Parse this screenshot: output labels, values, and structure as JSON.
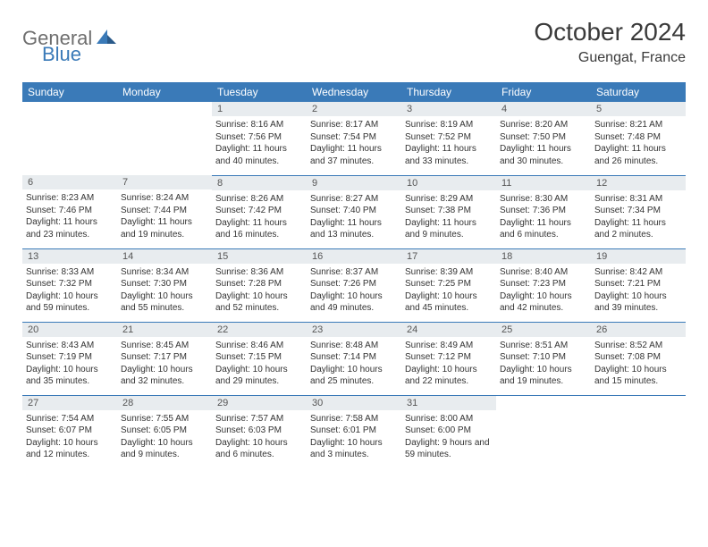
{
  "logo": {
    "part1": "General",
    "part2": "Blue"
  },
  "title": "October 2024",
  "location": "Guengat, France",
  "colors": {
    "header_bg": "#3a7ab8",
    "header_text": "#ffffff",
    "daynum_bg": "#e8ecef",
    "daynum_text": "#555555",
    "body_text": "#333333",
    "border": "#3a7ab8",
    "logo_gray": "#6e6e6e",
    "logo_blue": "#3a7ab8"
  },
  "day_labels": [
    "Sunday",
    "Monday",
    "Tuesday",
    "Wednesday",
    "Thursday",
    "Friday",
    "Saturday"
  ],
  "weeks": [
    [
      null,
      null,
      {
        "num": "1",
        "sunrise": "8:16 AM",
        "sunset": "7:56 PM",
        "daylight": "11 hours and 40 minutes."
      },
      {
        "num": "2",
        "sunrise": "8:17 AM",
        "sunset": "7:54 PM",
        "daylight": "11 hours and 37 minutes."
      },
      {
        "num": "3",
        "sunrise": "8:19 AM",
        "sunset": "7:52 PM",
        "daylight": "11 hours and 33 minutes."
      },
      {
        "num": "4",
        "sunrise": "8:20 AM",
        "sunset": "7:50 PM",
        "daylight": "11 hours and 30 minutes."
      },
      {
        "num": "5",
        "sunrise": "8:21 AM",
        "sunset": "7:48 PM",
        "daylight": "11 hours and 26 minutes."
      }
    ],
    [
      {
        "num": "6",
        "sunrise": "8:23 AM",
        "sunset": "7:46 PM",
        "daylight": "11 hours and 23 minutes."
      },
      {
        "num": "7",
        "sunrise": "8:24 AM",
        "sunset": "7:44 PM",
        "daylight": "11 hours and 19 minutes."
      },
      {
        "num": "8",
        "sunrise": "8:26 AM",
        "sunset": "7:42 PM",
        "daylight": "11 hours and 16 minutes."
      },
      {
        "num": "9",
        "sunrise": "8:27 AM",
        "sunset": "7:40 PM",
        "daylight": "11 hours and 13 minutes."
      },
      {
        "num": "10",
        "sunrise": "8:29 AM",
        "sunset": "7:38 PM",
        "daylight": "11 hours and 9 minutes."
      },
      {
        "num": "11",
        "sunrise": "8:30 AM",
        "sunset": "7:36 PM",
        "daylight": "11 hours and 6 minutes."
      },
      {
        "num": "12",
        "sunrise": "8:31 AM",
        "sunset": "7:34 PM",
        "daylight": "11 hours and 2 minutes."
      }
    ],
    [
      {
        "num": "13",
        "sunrise": "8:33 AM",
        "sunset": "7:32 PM",
        "daylight": "10 hours and 59 minutes."
      },
      {
        "num": "14",
        "sunrise": "8:34 AM",
        "sunset": "7:30 PM",
        "daylight": "10 hours and 55 minutes."
      },
      {
        "num": "15",
        "sunrise": "8:36 AM",
        "sunset": "7:28 PM",
        "daylight": "10 hours and 52 minutes."
      },
      {
        "num": "16",
        "sunrise": "8:37 AM",
        "sunset": "7:26 PM",
        "daylight": "10 hours and 49 minutes."
      },
      {
        "num": "17",
        "sunrise": "8:39 AM",
        "sunset": "7:25 PM",
        "daylight": "10 hours and 45 minutes."
      },
      {
        "num": "18",
        "sunrise": "8:40 AM",
        "sunset": "7:23 PM",
        "daylight": "10 hours and 42 minutes."
      },
      {
        "num": "19",
        "sunrise": "8:42 AM",
        "sunset": "7:21 PM",
        "daylight": "10 hours and 39 minutes."
      }
    ],
    [
      {
        "num": "20",
        "sunrise": "8:43 AM",
        "sunset": "7:19 PM",
        "daylight": "10 hours and 35 minutes."
      },
      {
        "num": "21",
        "sunrise": "8:45 AM",
        "sunset": "7:17 PM",
        "daylight": "10 hours and 32 minutes."
      },
      {
        "num": "22",
        "sunrise": "8:46 AM",
        "sunset": "7:15 PM",
        "daylight": "10 hours and 29 minutes."
      },
      {
        "num": "23",
        "sunrise": "8:48 AM",
        "sunset": "7:14 PM",
        "daylight": "10 hours and 25 minutes."
      },
      {
        "num": "24",
        "sunrise": "8:49 AM",
        "sunset": "7:12 PM",
        "daylight": "10 hours and 22 minutes."
      },
      {
        "num": "25",
        "sunrise": "8:51 AM",
        "sunset": "7:10 PM",
        "daylight": "10 hours and 19 minutes."
      },
      {
        "num": "26",
        "sunrise": "8:52 AM",
        "sunset": "7:08 PM",
        "daylight": "10 hours and 15 minutes."
      }
    ],
    [
      {
        "num": "27",
        "sunrise": "7:54 AM",
        "sunset": "6:07 PM",
        "daylight": "10 hours and 12 minutes."
      },
      {
        "num": "28",
        "sunrise": "7:55 AM",
        "sunset": "6:05 PM",
        "daylight": "10 hours and 9 minutes."
      },
      {
        "num": "29",
        "sunrise": "7:57 AM",
        "sunset": "6:03 PM",
        "daylight": "10 hours and 6 minutes."
      },
      {
        "num": "30",
        "sunrise": "7:58 AM",
        "sunset": "6:01 PM",
        "daylight": "10 hours and 3 minutes."
      },
      {
        "num": "31",
        "sunrise": "8:00 AM",
        "sunset": "6:00 PM",
        "daylight": "9 hours and 59 minutes."
      },
      null,
      null
    ]
  ],
  "labels": {
    "sunrise": "Sunrise:",
    "sunset": "Sunset:",
    "daylight": "Daylight:"
  }
}
